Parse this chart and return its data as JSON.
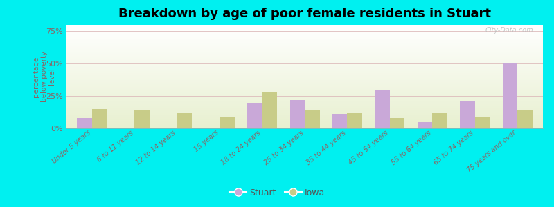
{
  "title": "Breakdown by age of poor female residents in Stuart",
  "categories": [
    "Under 5 years",
    "6 to 11 years",
    "12 to 14 years",
    "15 years",
    "18 to 24 years",
    "25 to 34 years",
    "35 to 44 years",
    "45 to 54 years",
    "55 to 64 years",
    "65 to 74 years",
    "75 years and over"
  ],
  "stuart_values": [
    8,
    0,
    0,
    0,
    19,
    22,
    11,
    30,
    5,
    21,
    50
  ],
  "iowa_values": [
    15,
    14,
    12,
    9,
    28,
    14,
    12,
    8,
    12,
    9,
    14
  ],
  "stuart_color": "#c9a8d8",
  "iowa_color": "#c8cc88",
  "background_color": "#00f0f0",
  "ylabel": "percentage\nbelow poverty\nlevel",
  "ylim": [
    0,
    80
  ],
  "yticks": [
    0,
    25,
    50,
    75
  ],
  "ytick_labels": [
    "0%",
    "25%",
    "50%",
    "75%"
  ],
  "bar_width": 0.35,
  "title_fontsize": 13,
  "axis_label_color": "#886666",
  "tick_label_color": "#886666",
  "watermark": "City-Data.com",
  "legend_labels": [
    "Stuart",
    "Iowa"
  ]
}
